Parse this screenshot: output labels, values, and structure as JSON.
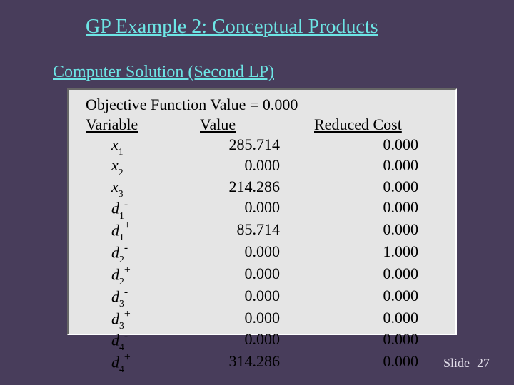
{
  "theme": {
    "background": "#483d5b",
    "highlight": "#6de5e5",
    "panel_bg": "#e5e5e5",
    "text_on_panel": "#000000",
    "footer_text": "#e0dce8"
  },
  "title": "GP Example 2:  Conceptual Products",
  "subtitle": "Computer Solution (Second LP)",
  "objective": {
    "label": "Objective Function Value  = ",
    "value": "0.000"
  },
  "columns": {
    "variable": "Variable",
    "value": "Value",
    "reduced_cost": "Reduced Cost"
  },
  "rows": [
    {
      "var_base": "x",
      "var_sub": "1",
      "var_sup": "",
      "value": "285.714",
      "rc": "0.000"
    },
    {
      "var_base": "x",
      "var_sub": "2",
      "var_sup": "",
      "value": "0.000",
      "rc": "0.000"
    },
    {
      "var_base": "x",
      "var_sub": "3",
      "var_sup": "",
      "value": "214.286",
      "rc": "0.000"
    },
    {
      "var_base": "d",
      "var_sub": "1",
      "var_sup": "-",
      "value": "0.000",
      "rc": "0.000"
    },
    {
      "var_base": "d",
      "var_sub": "1",
      "var_sup": "+",
      "value": "85.714",
      "rc": "0.000"
    },
    {
      "var_base": "d",
      "var_sub": "2",
      "var_sup": "-",
      "value": "0.000",
      "rc": "1.000"
    },
    {
      "var_base": "d",
      "var_sub": "2",
      "var_sup": "+",
      "value": "0.000",
      "rc": "0.000"
    },
    {
      "var_base": "d",
      "var_sub": "3",
      "var_sup": "-",
      "value": "0.000",
      "rc": "0.000"
    },
    {
      "var_base": "d",
      "var_sub": "3",
      "var_sup": "+",
      "value": "0.000",
      "rc": "0.000"
    },
    {
      "var_base": "d",
      "var_sub": "4",
      "var_sup": "-",
      "value": "0.000",
      "rc": "0.000"
    },
    {
      "var_base": "d",
      "var_sub": "4",
      "var_sup": "+",
      "value": "314.286",
      "rc": "0.000"
    }
  ],
  "footer": {
    "label": "Slide",
    "number": "27"
  }
}
